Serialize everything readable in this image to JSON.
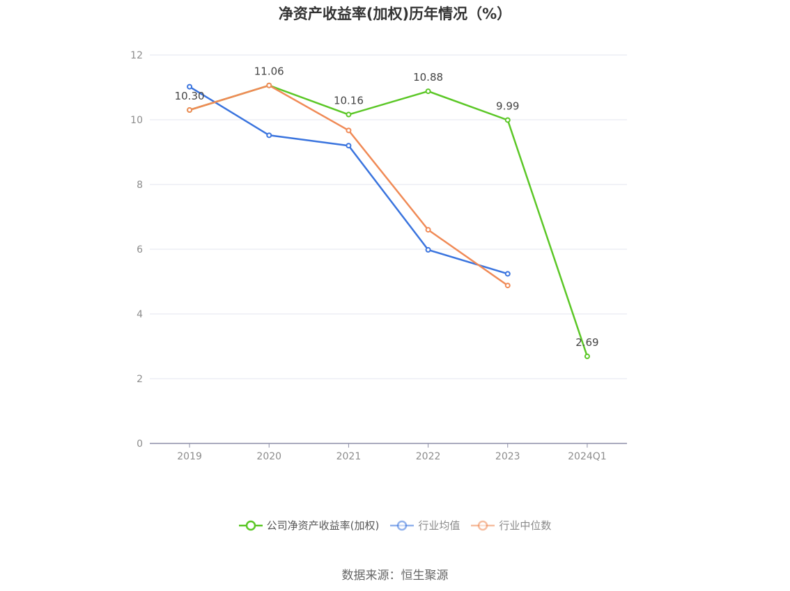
{
  "chart_data": {
    "type": "line",
    "title": "净资产收益率(加权)历年情况（%）",
    "categories": [
      "2019",
      "2020",
      "2021",
      "2022",
      "2023",
      "2024Q1"
    ],
    "ylim": [
      0,
      12
    ],
    "yticks": [
      0,
      2,
      4,
      6,
      8,
      10,
      12
    ],
    "grid": true,
    "legend_position": "bottom",
    "series": [
      {
        "name": "公司净资产收益率(加权)",
        "color": "#5bc726",
        "values": [
          10.3,
          11.06,
          10.16,
          10.88,
          9.99,
          2.69
        ],
        "data_labels": [
          "10.30",
          "11.06",
          "10.16",
          "10.88",
          "9.99",
          "2.69"
        ]
      },
      {
        "name": "行业均值",
        "color": "#3a74de",
        "values": [
          11.02,
          9.52,
          9.2,
          5.98,
          5.24,
          null
        ]
      },
      {
        "name": "行业中位数",
        "color": "#f08a56",
        "values": [
          10.3,
          11.06,
          9.67,
          6.6,
          4.88,
          null
        ]
      }
    ]
  },
  "source_note": "数据来源：恒生聚源"
}
